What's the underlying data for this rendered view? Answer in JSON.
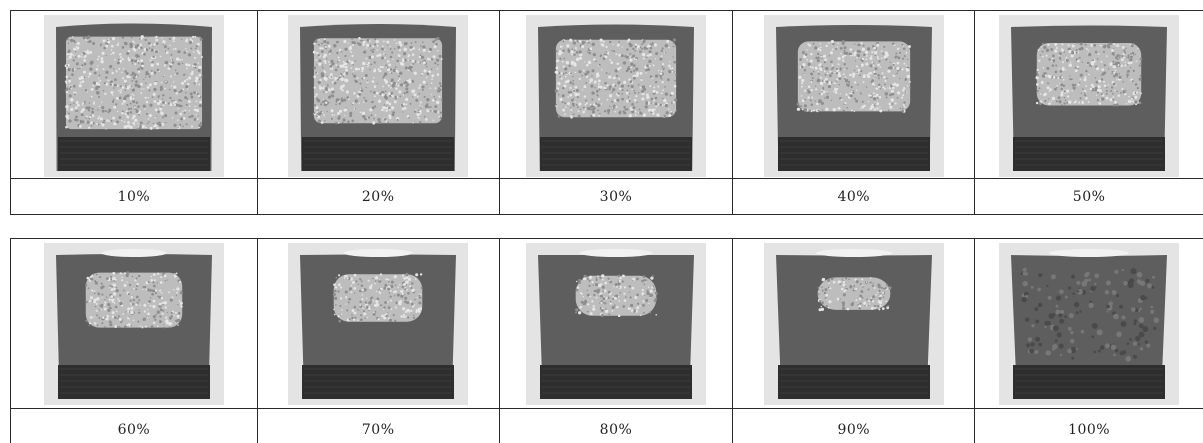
{
  "rows": [
    {
      "labels": [
        "10%",
        "20%",
        "30%",
        "40%",
        "50%"
      ],
      "shear_fraction": [
        0.1,
        0.2,
        0.3,
        0.4,
        0.5
      ]
    },
    {
      "labels": [
        "60%",
        "70%",
        "80%",
        "90%",
        "100%"
      ],
      "shear_fraction": [
        0.6,
        0.7,
        0.8,
        0.9,
        1.0
      ]
    }
  ],
  "colors": {
    "crystalline": "#bdbdbd",
    "shear": "#5e5e5e",
    "base": "#2e2e2e",
    "background": "#e4e4e4",
    "grid": "#2a2a2a"
  }
}
